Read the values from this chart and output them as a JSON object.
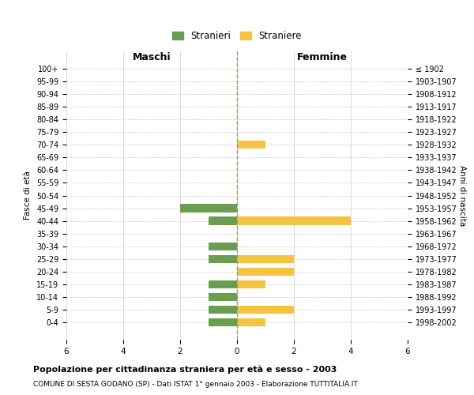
{
  "age_groups": [
    "100+",
    "95-99",
    "90-94",
    "85-89",
    "80-84",
    "75-79",
    "70-74",
    "65-69",
    "60-64",
    "55-59",
    "50-54",
    "45-49",
    "40-44",
    "35-39",
    "30-34",
    "25-29",
    "20-24",
    "15-19",
    "10-14",
    "5-9",
    "0-4"
  ],
  "birth_years": [
    "≤ 1902",
    "1903-1907",
    "1908-1912",
    "1913-1917",
    "1918-1922",
    "1923-1927",
    "1928-1932",
    "1933-1937",
    "1938-1942",
    "1943-1947",
    "1948-1952",
    "1953-1957",
    "1958-1962",
    "1963-1967",
    "1968-1972",
    "1973-1977",
    "1978-1982",
    "1983-1987",
    "1988-1992",
    "1993-1997",
    "1998-2002"
  ],
  "maschi": [
    0,
    0,
    0,
    0,
    0,
    0,
    0,
    0,
    0,
    0,
    0,
    2,
    1,
    0,
    1,
    1,
    0,
    1,
    1,
    1,
    1
  ],
  "femmine": [
    0,
    0,
    0,
    0,
    0,
    0,
    1,
    0,
    0,
    0,
    0,
    0,
    4,
    0,
    0,
    2,
    2,
    1,
    0,
    2,
    1
  ],
  "maschi_color": "#6a9e4f",
  "femmine_color": "#f5c242",
  "legend_maschi": "Stranieri",
  "legend_femmine": "Straniere",
  "xlabel_left": "Maschi",
  "xlabel_right": "Femmine",
  "ylabel_left": "Fasce di età",
  "ylabel_right": "Anni di nascita",
  "title": "Popolazione per cittadinanza straniera per età e sesso - 2003",
  "subtitle": "COMUNE DI SESTA GODANO (SP) - Dati ISTAT 1° gennaio 2003 - Elaborazione TUTTITALIA.IT",
  "xlim": 6,
  "background_color": "#ffffff",
  "grid_color": "#cccccc",
  "grid_color_dashed": "#999966"
}
